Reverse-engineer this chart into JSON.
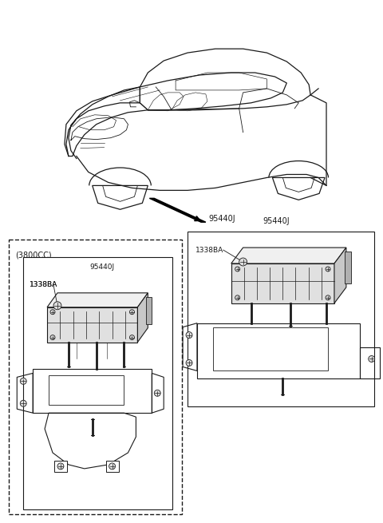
{
  "bg_color": "#ffffff",
  "line_color": "#1a1a1a",
  "fig_width": 4.8,
  "fig_height": 6.55,
  "dpi": 100,
  "label_95440J_car": "95440J",
  "label_1338BA_right": "1338BA",
  "label_1338BA_left": "1338BA",
  "label_95440J_left": "95440J",
  "label_3800cc": "(3800CC)"
}
